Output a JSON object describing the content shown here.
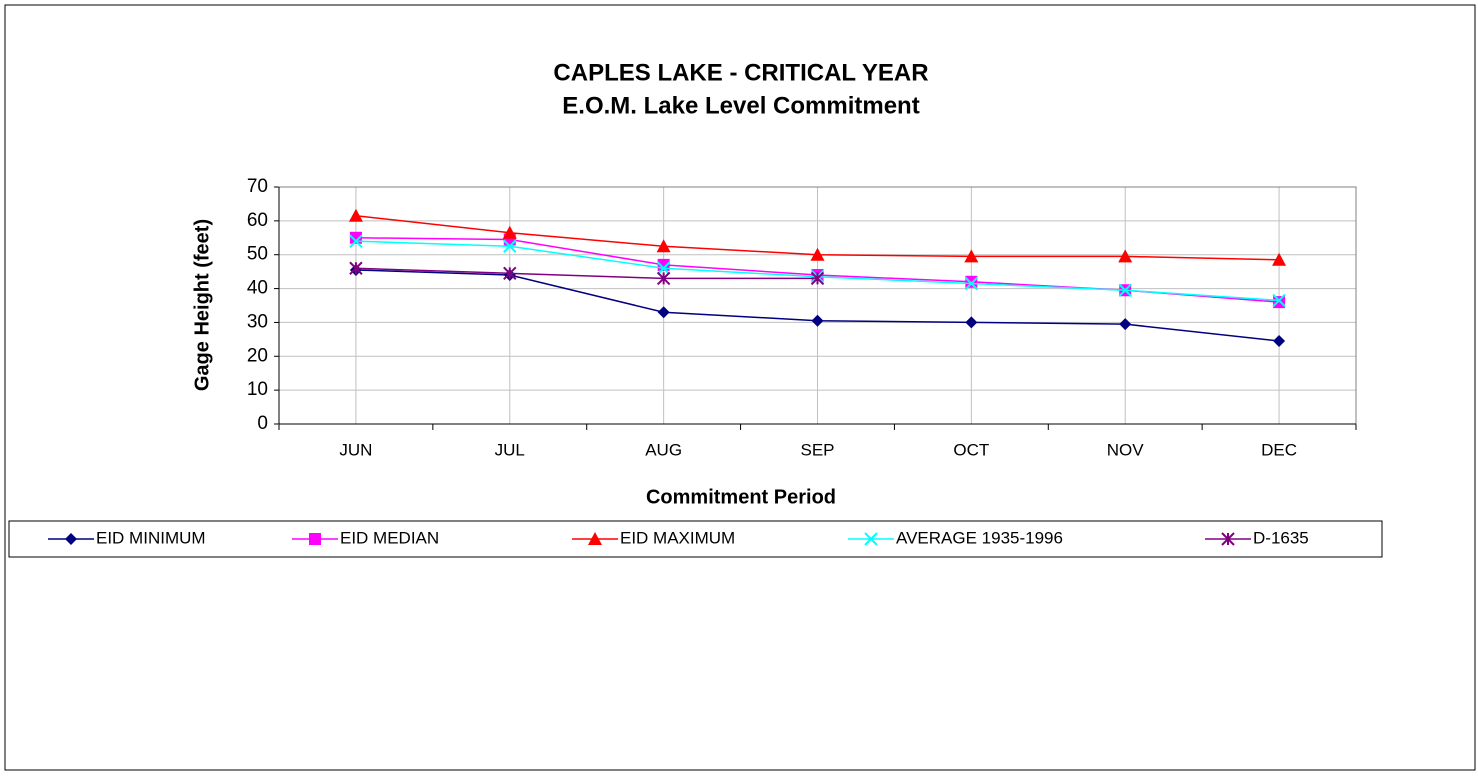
{
  "chart_data": {
    "type": "line",
    "title": [
      "CAPLES LAKE - CRITICAL YEAR",
      "E.O.M. Lake Level Commitment"
    ],
    "x_label": "Commitment Period",
    "y_label": "Gage Height (feet)",
    "categories": [
      "JUN",
      "JUL",
      "AUG",
      "SEP",
      "OCT",
      "NOV",
      "DEC"
    ],
    "series": [
      {
        "name": "EID MINIMUM",
        "color": "#000080",
        "marker": "diamond",
        "values": [
          45.5,
          44,
          33,
          30.5,
          30,
          29.5,
          24.5
        ]
      },
      {
        "name": "EID MEDIAN",
        "color": "#ff00ff",
        "marker": "square",
        "values": [
          55,
          54.5,
          47,
          44,
          42,
          39.5,
          36
        ]
      },
      {
        "name": "EID MAXIMUM",
        "color": "#ff0000",
        "marker": "triangle",
        "values": [
          61.5,
          56.5,
          52.5,
          50,
          49.5,
          49.5,
          48.5
        ]
      },
      {
        "name": "AVERAGE 1935-1996",
        "color": "#00ffff",
        "marker": "x",
        "values": [
          54,
          52.5,
          46,
          43.5,
          41.5,
          39.5,
          36.5
        ]
      },
      {
        "name": "D-1635",
        "color": "#800080",
        "marker": "star",
        "values": [
          46,
          44.5,
          43,
          43,
          null,
          null,
          null
        ]
      }
    ],
    "ylim": [
      0,
      70
    ],
    "yticks": [
      0,
      10,
      20,
      30,
      40,
      50,
      60,
      70
    ],
    "grid": true,
    "legend": "bottom"
  }
}
